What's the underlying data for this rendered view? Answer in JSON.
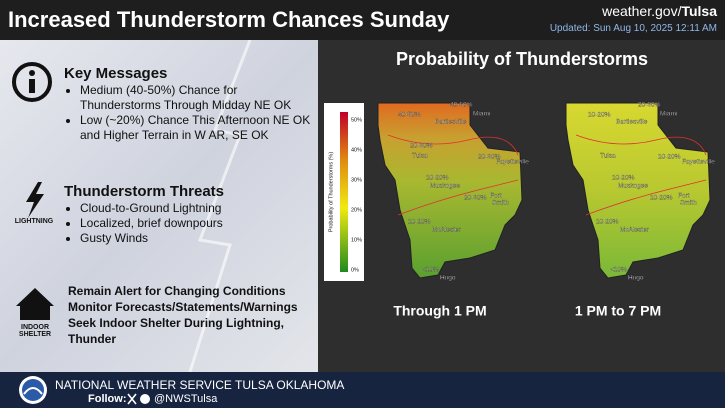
{
  "header": {
    "title": "Increased Thunderstorm Chances Sunday",
    "site_prefix": "weather.gov/",
    "site_office": "Tulsa",
    "updated": "Updated: Sun Aug 10, 2025 12:11 AM"
  },
  "key_messages": {
    "title": "Key Messages",
    "items": [
      "Medium (40-50%) Chance for Thunderstorms Through Midday NE OK",
      "Low (~20%) Chance This Afternoon NE OK and Higher Terrain in W AR, SE OK"
    ]
  },
  "threats": {
    "title": "Thunderstorm Threats",
    "icon_label": "LIGHTNING",
    "items": [
      "Cloud-to-Ground Lightning",
      "Localized, brief downpours",
      "Gusty Winds"
    ]
  },
  "shelter": {
    "icon_label": "INDOOR SHELTER",
    "lines": [
      "Remain Alert for Changing Conditions",
      "Monitor Forecasts/Statements/Warnings",
      "Seek Indoor Shelter During Lightning,",
      "Thunder"
    ]
  },
  "panel": {
    "title": "Probability of Thunderstorms"
  },
  "colorbar": {
    "label": "Probability of Thunderstorms (%)",
    "ticks": [
      "50%",
      "40%",
      "30%",
      "20%",
      "10%",
      "0%"
    ]
  },
  "maps": [
    {
      "caption": "Through 1 PM",
      "labels": [
        "40-50%",
        "40-50%",
        "Bartlesville",
        "Miami",
        "20-30%",
        "Tulsa",
        "20-30%",
        "Fayetteville",
        "10-20%",
        "Muskogee",
        "20-30%",
        "Fort",
        "Smith",
        "10-20%",
        "McAlester",
        "<10%",
        "Hugo"
      ]
    },
    {
      "caption": "1 PM to 7 PM",
      "labels": [
        "20-30%",
        "10-20%",
        "Bartlesville",
        "Miami",
        "Tulsa",
        "10-20%",
        "Fayetteville",
        "10-20%",
        "Muskogee",
        "10-20%",
        "Fort",
        "Smith",
        "10-20%",
        "McAlester",
        "<10%",
        "Hugo"
      ]
    }
  ],
  "footer": {
    "office": "NATIONAL WEATHER SERVICE TULSA OKLAHOMA",
    "follow": "Follow:",
    "handle": "@NWSTulsa"
  }
}
